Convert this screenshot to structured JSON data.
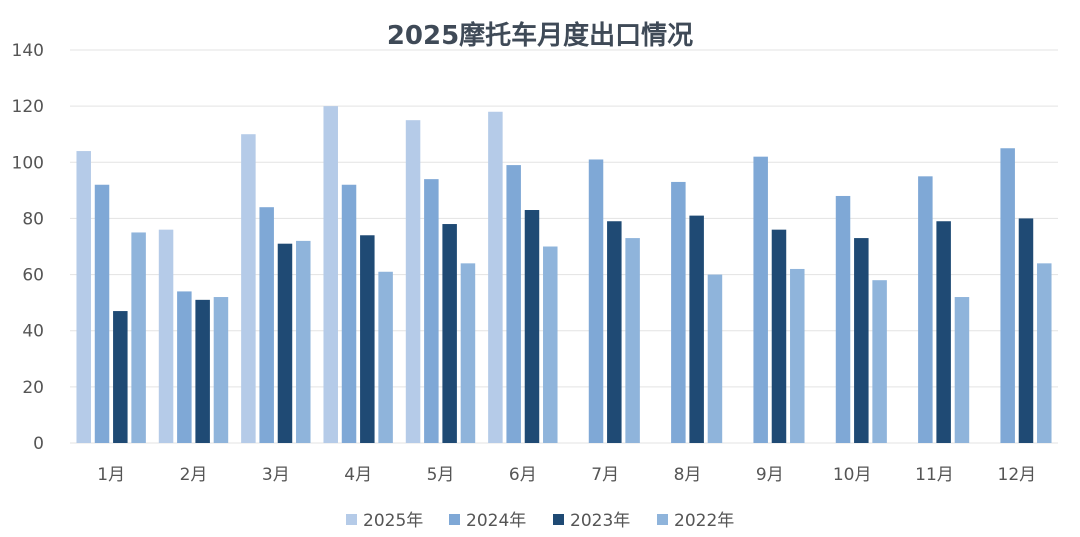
{
  "chart_data": {
    "type": "bar",
    "title": "2025摩托车月度出口情况",
    "xlabel": "",
    "ylabel": "",
    "ylim": [
      0,
      140
    ],
    "yticks": [
      0,
      20,
      40,
      60,
      80,
      100,
      120,
      140
    ],
    "categories": [
      "1月",
      "2月",
      "3月",
      "4月",
      "5月",
      "6月",
      "7月",
      "8月",
      "9月",
      "10月",
      "11月",
      "12月"
    ],
    "grid": true,
    "legend_position": "bottom",
    "series": [
      {
        "name": "2025年",
        "color": "#b5cbe8",
        "values": [
          104,
          76,
          110,
          120,
          115,
          118,
          null,
          null,
          null,
          null,
          null,
          null
        ]
      },
      {
        "name": "2024年",
        "color": "#7fa8d6",
        "values": [
          92,
          54,
          84,
          92,
          94,
          99,
          101,
          93,
          102,
          88,
          95,
          105
        ]
      },
      {
        "name": "2023年",
        "color": "#1f4a74",
        "values": [
          47,
          51,
          71,
          74,
          78,
          83,
          79,
          81,
          76,
          73,
          79,
          80
        ]
      },
      {
        "name": "2022年",
        "color": "#8fb4db",
        "values": [
          75,
          52,
          72,
          61,
          64,
          70,
          73,
          60,
          62,
          58,
          52,
          64
        ]
      }
    ]
  }
}
